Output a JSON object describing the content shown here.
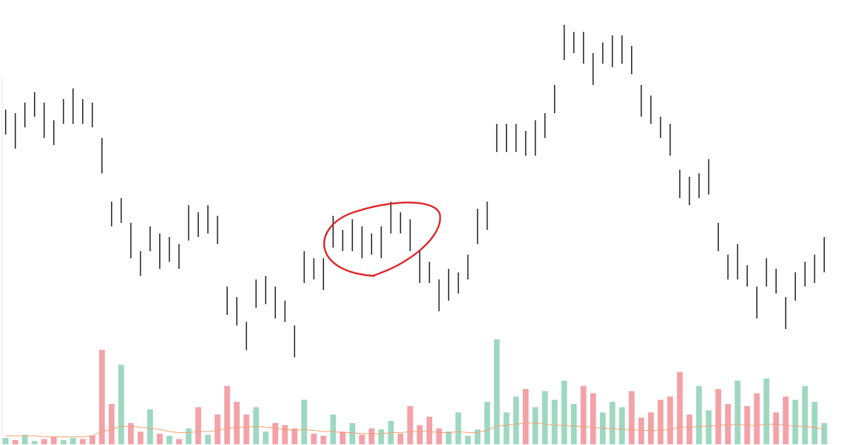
{
  "chart_data": {
    "type": "ohlc",
    "color": "#222222",
    "ylim": [
      0,
      100
    ],
    "high": [
      73,
      72,
      75,
      78,
      75,
      70,
      76,
      79,
      76,
      75,
      65,
      47,
      48,
      41,
      33,
      40,
      38,
      37,
      35,
      46,
      44,
      46,
      43,
      23,
      20,
      13,
      25,
      26,
      23,
      19,
      12,
      33,
      31,
      31,
      43,
      39,
      42,
      40,
      38,
      40,
      47,
      44,
      42,
      33,
      30,
      25,
      28,
      27,
      32,
      45,
      47,
      69,
      69,
      69,
      67,
      70,
      72,
      80,
      97,
      95,
      95,
      89,
      92,
      94,
      94,
      91,
      80,
      77,
      71,
      69,
      56,
      54,
      55,
      59,
      41,
      32,
      35,
      29,
      23,
      31,
      28,
      20,
      27,
      30,
      32,
      37
    ],
    "low": [
      66,
      62,
      68,
      71,
      65,
      63,
      69,
      69,
      69,
      68,
      55,
      40,
      41,
      31,
      26,
      33,
      28,
      30,
      28,
      36,
      37,
      38,
      35,
      15,
      12,
      5,
      17,
      18,
      14,
      13,
      3,
      24,
      25,
      22,
      34,
      33,
      33,
      31,
      32,
      31,
      38,
      38,
      33,
      24,
      24,
      16,
      19,
      21,
      25,
      35,
      39,
      61,
      61,
      61,
      60,
      60,
      65,
      72,
      87,
      89,
      86,
      80,
      86,
      85,
      86,
      83,
      71,
      69,
      65,
      60,
      48,
      46,
      48,
      49,
      33,
      25,
      25,
      23,
      14,
      23,
      21,
      11,
      19,
      23,
      24,
      27
    ],
    "volume": {
      "ylim": [
        0,
        100
      ],
      "up_color": "#9fd8c0",
      "down_color": "#f3a2a8",
      "ma_color": "#f0a070",
      "values": [
        6,
        4,
        9,
        3,
        5,
        7,
        4,
        6,
        5,
        8,
        89,
        38,
        75,
        20,
        12,
        33,
        10,
        8,
        5,
        15,
        35,
        9,
        28,
        55,
        40,
        28,
        35,
        12,
        20,
        18,
        15,
        42,
        10,
        8,
        28,
        12,
        20,
        9,
        15,
        14,
        22,
        10,
        36,
        18,
        26,
        15,
        12,
        30,
        8,
        14,
        40,
        99,
        30,
        45,
        52,
        35,
        50,
        42,
        60,
        38,
        55,
        48,
        30,
        40,
        35,
        50,
        25,
        30,
        42,
        45,
        68,
        28,
        55,
        32,
        52,
        38,
        60,
        36,
        48,
        62,
        30,
        45,
        42,
        55,
        40,
        20
      ],
      "ma": [
        8,
        8,
        8,
        8,
        7,
        7,
        7,
        7,
        7,
        8,
        12,
        14,
        17,
        17,
        16,
        15,
        14,
        12,
        11,
        11,
        12,
        12,
        13,
        15,
        16,
        16,
        17,
        16,
        15,
        14,
        13,
        14,
        13,
        12,
        12,
        11,
        11,
        10,
        10,
        10,
        11,
        11,
        12,
        12,
        12,
        11,
        11,
        12,
        11,
        11,
        13,
        17,
        18,
        19,
        20,
        20,
        19,
        18,
        18,
        17,
        17,
        16,
        15,
        15,
        14,
        14,
        13,
        13,
        13,
        14,
        16,
        16,
        17,
        17,
        18,
        18,
        19,
        18,
        18,
        19,
        19,
        18,
        17,
        17,
        16,
        14
      ]
    }
  }
}
